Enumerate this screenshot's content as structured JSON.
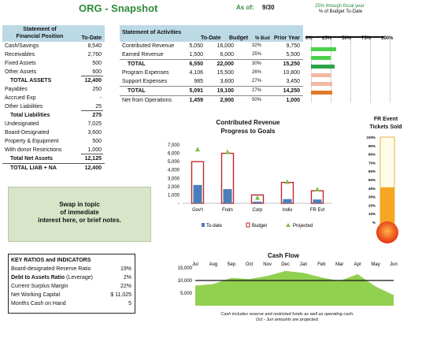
{
  "header": {
    "title": "ORG - Snapshot",
    "as_of_label": "As of:",
    "as_of_value": "9/30",
    "fy_note_1": "25% through fiscal year",
    "fy_note_2": "% of Budget To-Date"
  },
  "financial_position": {
    "title_line1": "Statement of",
    "title_line2": "Financial Position",
    "col_header": "To-Date",
    "rows": [
      {
        "label": "Cash/Savings",
        "value": "8,540"
      },
      {
        "label": "Receivables",
        "value": "2,760"
      },
      {
        "label": "Fixed Assets",
        "value": "500"
      },
      {
        "label": "Other Assets",
        "value": "600"
      },
      {
        "label": "TOTAL ASSETS",
        "value": "12,400"
      },
      {
        "label": "Payables",
        "value": "250"
      },
      {
        "label": "Accrued Exp",
        "value": "-"
      },
      {
        "label": "Other Liabilities",
        "value": "25"
      },
      {
        "label": "Total Liabilities",
        "value": "275"
      },
      {
        "label": "Undesignated",
        "value": "7,025"
      },
      {
        "label": "Board-Designated",
        "value": "3,600"
      },
      {
        "label": "Property & Equipment",
        "value": "500"
      },
      {
        "label": "With donor Restrictions",
        "value": "1,000"
      },
      {
        "label": "Total Net Assets",
        "value": "12,125"
      },
      {
        "label": "TOTAL LIAB + NA",
        "value": "12,400"
      }
    ]
  },
  "activities": {
    "title": "Statement of Activities",
    "col_headers": [
      "To-Date",
      "Budget",
      "% Bud",
      "Prior Year"
    ],
    "rows": [
      {
        "label": "Contributed Revenue",
        "to_date": "5,050",
        "budget": "16,000",
        "pct": "32%",
        "prior": "9,750"
      },
      {
        "label": "Earned Revenue",
        "to_date": "1,500",
        "budget": "6,000",
        "pct": "25%",
        "prior": "5,500"
      },
      {
        "label": "TOTAL",
        "to_date": "6,550",
        "budget": "22,000",
        "pct": "30%",
        "prior": "15,250"
      },
      {
        "label": "Program Expenses",
        "to_date": "4,106",
        "budget": "15,500",
        "pct": "26%",
        "prior": "10,800"
      },
      {
        "label": "Support Expenses",
        "to_date": "985",
        "budget": "3,600",
        "pct": "27%",
        "prior": "3,450"
      },
      {
        "label": "TOTAL",
        "to_date": "5,091",
        "budget": "19,100",
        "pct": "27%",
        "prior": "14,250"
      },
      {
        "label": "Net from Operations",
        "to_date": "1,459",
        "budget": "2,900",
        "pct": "50%",
        "prior": "1,000"
      }
    ]
  },
  "budget_bars": {
    "ticks": [
      "0%",
      "25%",
      "50%",
      "75%",
      "100%"
    ],
    "bars": [
      {
        "pct": 32,
        "color": "#4cd14c"
      },
      {
        "pct": 25,
        "color": "#4cd14c"
      },
      {
        "pct": 30,
        "color": "#2ea34a"
      },
      {
        "pct": 26,
        "color": "#f2b8a0"
      },
      {
        "pct": 27,
        "color": "#f2b8a0"
      },
      {
        "pct": 27,
        "color": "#e07b2a"
      }
    ]
  },
  "contributed_chart": {
    "title_line1": "Contributed Revenue",
    "title_line2": "Progress to Goals",
    "legend": [
      "To-date",
      "Budget",
      "Projected"
    ]
  },
  "chart_data": [
    {
      "type": "bar",
      "title": "Contributed Revenue Progress to Goals",
      "categories": [
        "Gov't",
        "Fndn",
        "Corp",
        "Indiv",
        "FR Evt"
      ],
      "ylim": [
        0,
        7000
      ],
      "yticks": [
        "-",
        "1,000",
        "2,000",
        "3,000",
        "4,000",
        "5,000",
        "6,000",
        "7,000"
      ],
      "series": [
        {
          "name": "To-date",
          "values": [
            2200,
            1700,
            200,
            500,
            450
          ]
        },
        {
          "name": "Budget",
          "values": [
            5000,
            6000,
            1000,
            2500,
            1500
          ]
        },
        {
          "name": "Projected",
          "values": [
            6500,
            6200,
            700,
            2600,
            1700
          ]
        }
      ]
    },
    {
      "type": "area",
      "title": "Cash Flow",
      "categories": [
        "Jul",
        "Aug",
        "Sep",
        "Oct",
        "Nov",
        "Dec",
        "Jan",
        "Feb",
        "Mar",
        "Apr",
        "May",
        "Jun"
      ],
      "yticks": [
        "5,000",
        "10,000",
        "15,000"
      ],
      "ylim": [
        0,
        15000
      ],
      "values": [
        8000,
        8600,
        11000,
        10600,
        11800,
        13800,
        13000,
        11200,
        9800,
        12500,
        7600,
        4200
      ],
      "target": 10000
    },
    {
      "type": "bar",
      "title": "FR Event Tickets Sold",
      "categories": [
        "Tickets Sold"
      ],
      "ylim": [
        0,
        100
      ],
      "yticks": [
        "%",
        "10%",
        "20%",
        "30%",
        "40%",
        "50%",
        "60%",
        "70%",
        "80%",
        "90%",
        "100%"
      ],
      "values": [
        41
      ]
    }
  ],
  "thermometer": {
    "title_line1": "FR Event",
    "title_line2": "Tickets Sold"
  },
  "swap_box": {
    "text_line1": "Swap in topic",
    "text_line2": "of immediate",
    "text_line3": "interest here, or brief notes."
  },
  "key_ratios": {
    "title": "KEY RATIOS and INDICATORS",
    "rows": [
      {
        "label": "Board-designated Reserve Ratio",
        "value": "19%",
        "bold": false
      },
      {
        "label": "Debt to Assets Ratio",
        "suffix": " (Leverage)",
        "value": "2%",
        "bold": true
      },
      {
        "label": "Current Surplus Margin",
        "value": "22%",
        "bold": false
      },
      {
        "label": "Net Working Capital",
        "value": "$ 11,025",
        "bold": false
      },
      {
        "label": "Months Cash on Hand",
        "value": "5",
        "bold": false
      }
    ]
  },
  "cash_flow": {
    "title": "Cash Flow",
    "note_line1": "Cash includes reserve and restricted funds as well as operating cash.",
    "note_line2": "Oct - Jun amounts are projected."
  },
  "colors": {
    "header_fill": "#bcd9e6",
    "title_green": "#2e8b3a",
    "todate_blue": "#4a7ebb",
    "budget_red": "#c0282c",
    "projected_green": "#7dbd4c",
    "cashflow_green": "#92d050",
    "swap_fill": "#d9e5c8"
  }
}
